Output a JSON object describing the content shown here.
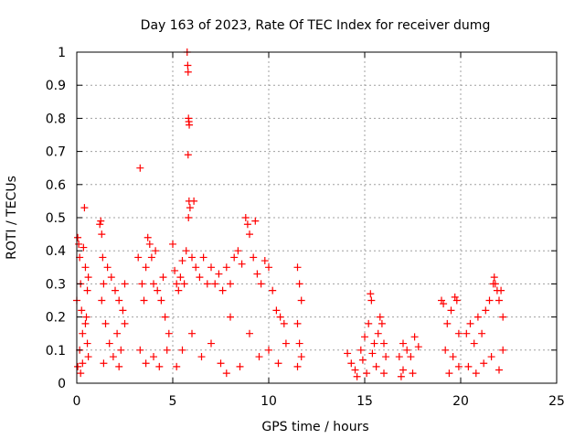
{
  "chart_data": {
    "type": "scatter",
    "title": "Day 163 of 2023, Rate Of TEC Index for receiver dumg",
    "xlabel": "GPS time / hours",
    "ylabel": "ROTI / TECUs",
    "xlim": [
      0,
      25
    ],
    "ylim": [
      0,
      1
    ],
    "xticks": [
      "0",
      "5",
      "10",
      "15",
      "20",
      "25"
    ],
    "yticks": [
      "0",
      "0.1",
      "0.2",
      "0.3",
      "0.4",
      "0.5",
      "0.6",
      "0.7",
      "0.8",
      "0.9",
      "1"
    ],
    "grid": true,
    "marker": "+",
    "color": "#ff0000",
    "series": [
      {
        "name": "",
        "points": [
          [
            0.0,
            0.25
          ],
          [
            0.05,
            0.44
          ],
          [
            0.1,
            0.42
          ],
          [
            0.15,
            0.38
          ],
          [
            0.2,
            0.3
          ],
          [
            0.25,
            0.22
          ],
          [
            0.3,
            0.15
          ],
          [
            0.35,
            0.41
          ],
          [
            0.4,
            0.53
          ],
          [
            0.45,
            0.35
          ],
          [
            0.5,
            0.2
          ],
          [
            0.55,
            0.12
          ],
          [
            0.6,
            0.08
          ],
          [
            0.05,
            0.05
          ],
          [
            0.15,
            0.1
          ],
          [
            0.3,
            0.06
          ],
          [
            0.45,
            0.18
          ],
          [
            0.55,
            0.28
          ],
          [
            0.6,
            0.32
          ],
          [
            0.2,
            0.03
          ],
          [
            1.2,
            0.48
          ],
          [
            1.25,
            0.49
          ],
          [
            1.3,
            0.45
          ],
          [
            1.35,
            0.38
          ],
          [
            1.4,
            0.3
          ],
          [
            1.3,
            0.25
          ],
          [
            1.5,
            0.18
          ],
          [
            1.6,
            0.35
          ],
          [
            1.8,
            0.32
          ],
          [
            2.0,
            0.28
          ],
          [
            2.2,
            0.25
          ],
          [
            2.4,
            0.22
          ],
          [
            1.7,
            0.12
          ],
          [
            1.9,
            0.08
          ],
          [
            2.1,
            0.15
          ],
          [
            2.3,
            0.1
          ],
          [
            2.5,
            0.3
          ],
          [
            2.5,
            0.18
          ],
          [
            1.4,
            0.06
          ],
          [
            2.2,
            0.05
          ],
          [
            3.2,
            0.38
          ],
          [
            3.3,
            0.65
          ],
          [
            3.4,
            0.3
          ],
          [
            3.5,
            0.25
          ],
          [
            3.6,
            0.35
          ],
          [
            3.7,
            0.44
          ],
          [
            3.8,
            0.42
          ],
          [
            3.9,
            0.38
          ],
          [
            4.0,
            0.3
          ],
          [
            4.2,
            0.28
          ],
          [
            4.4,
            0.25
          ],
          [
            4.6,
            0.2
          ],
          [
            4.8,
            0.15
          ],
          [
            3.3,
            0.1
          ],
          [
            3.6,
            0.06
          ],
          [
            4.0,
            0.08
          ],
          [
            4.3,
            0.05
          ],
          [
            4.7,
            0.1
          ],
          [
            4.1,
            0.4
          ],
          [
            4.5,
            0.32
          ],
          [
            5.0,
            0.42
          ],
          [
            5.1,
            0.34
          ],
          [
            5.2,
            0.3
          ],
          [
            5.3,
            0.28
          ],
          [
            5.4,
            0.32
          ],
          [
            5.5,
            0.37
          ],
          [
            5.6,
            0.3
          ],
          [
            5.7,
            0.4
          ],
          [
            5.75,
            1.0
          ],
          [
            5.78,
            0.96
          ],
          [
            5.8,
            0.94
          ],
          [
            5.82,
            0.8
          ],
          [
            5.84,
            0.79
          ],
          [
            5.86,
            0.78
          ],
          [
            5.8,
            0.69
          ],
          [
            5.85,
            0.55
          ],
          [
            5.9,
            0.53
          ],
          [
            5.82,
            0.5
          ],
          [
            6.1,
            0.55
          ],
          [
            6.0,
            0.38
          ],
          [
            6.2,
            0.35
          ],
          [
            6.4,
            0.32
          ],
          [
            6.6,
            0.38
          ],
          [
            6.8,
            0.3
          ],
          [
            7.0,
            0.35
          ],
          [
            7.2,
            0.3
          ],
          [
            7.4,
            0.33
          ],
          [
            7.6,
            0.28
          ],
          [
            7.8,
            0.35
          ],
          [
            8.0,
            0.3
          ],
          [
            8.2,
            0.38
          ],
          [
            8.4,
            0.4
          ],
          [
            8.6,
            0.36
          ],
          [
            8.8,
            0.5
          ],
          [
            8.9,
            0.48
          ],
          [
            9.0,
            0.45
          ],
          [
            9.2,
            0.38
          ],
          [
            9.3,
            0.49
          ],
          [
            9.4,
            0.33
          ],
          [
            9.6,
            0.3
          ],
          [
            9.8,
            0.37
          ],
          [
            10.0,
            0.35
          ],
          [
            10.2,
            0.28
          ],
          [
            10.4,
            0.22
          ],
          [
            10.6,
            0.2
          ],
          [
            10.8,
            0.18
          ],
          [
            10.9,
            0.12
          ],
          [
            5.5,
            0.1
          ],
          [
            6.5,
            0.08
          ],
          [
            7.5,
            0.06
          ],
          [
            8.5,
            0.05
          ],
          [
            9.5,
            0.08
          ],
          [
            10.5,
            0.06
          ],
          [
            6.0,
            0.15
          ],
          [
            7.0,
            0.12
          ],
          [
            8.0,
            0.2
          ],
          [
            9.0,
            0.15
          ],
          [
            10.0,
            0.1
          ],
          [
            5.2,
            0.05
          ],
          [
            7.8,
            0.03
          ],
          [
            11.5,
            0.35
          ],
          [
            11.6,
            0.3
          ],
          [
            11.7,
            0.25
          ],
          [
            11.5,
            0.18
          ],
          [
            11.6,
            0.12
          ],
          [
            11.7,
            0.08
          ],
          [
            11.5,
            0.05
          ],
          [
            14.1,
            0.09
          ],
          [
            14.3,
            0.06
          ],
          [
            14.5,
            0.04
          ],
          [
            14.8,
            0.1
          ],
          [
            15.0,
            0.14
          ],
          [
            15.2,
            0.18
          ],
          [
            15.3,
            0.27
          ],
          [
            15.35,
            0.25
          ],
          [
            15.5,
            0.12
          ],
          [
            15.7,
            0.15
          ],
          [
            15.8,
            0.2
          ],
          [
            15.9,
            0.18
          ],
          [
            16.0,
            0.12
          ],
          [
            16.1,
            0.08
          ],
          [
            14.6,
            0.02
          ],
          [
            15.1,
            0.03
          ],
          [
            15.6,
            0.05
          ],
          [
            16.0,
            0.03
          ],
          [
            14.9,
            0.07
          ],
          [
            15.4,
            0.09
          ],
          [
            16.8,
            0.08
          ],
          [
            17.0,
            0.12
          ],
          [
            17.2,
            0.1
          ],
          [
            17.4,
            0.08
          ],
          [
            17.6,
            0.14
          ],
          [
            17.8,
            0.11
          ],
          [
            17.0,
            0.04
          ],
          [
            17.5,
            0.03
          ],
          [
            16.9,
            0.02
          ],
          [
            19.0,
            0.25
          ],
          [
            19.1,
            0.24
          ],
          [
            19.3,
            0.18
          ],
          [
            19.5,
            0.22
          ],
          [
            19.7,
            0.26
          ],
          [
            19.8,
            0.25
          ],
          [
            19.9,
            0.15
          ],
          [
            19.2,
            0.1
          ],
          [
            19.6,
            0.08
          ],
          [
            19.9,
            0.05
          ],
          [
            19.4,
            0.03
          ],
          [
            20.3,
            0.15
          ],
          [
            20.5,
            0.18
          ],
          [
            20.7,
            0.12
          ],
          [
            20.9,
            0.2
          ],
          [
            21.1,
            0.15
          ],
          [
            21.3,
            0.22
          ],
          [
            21.5,
            0.25
          ],
          [
            21.7,
            0.3
          ],
          [
            21.75,
            0.32
          ],
          [
            21.8,
            0.3
          ],
          [
            21.9,
            0.28
          ],
          [
            22.0,
            0.25
          ],
          [
            22.1,
            0.28
          ],
          [
            22.2,
            0.2
          ],
          [
            20.4,
            0.05
          ],
          [
            20.8,
            0.03
          ],
          [
            21.2,
            0.06
          ],
          [
            21.6,
            0.08
          ],
          [
            22.0,
            0.04
          ],
          [
            22.2,
            0.1
          ]
        ]
      }
    ]
  }
}
